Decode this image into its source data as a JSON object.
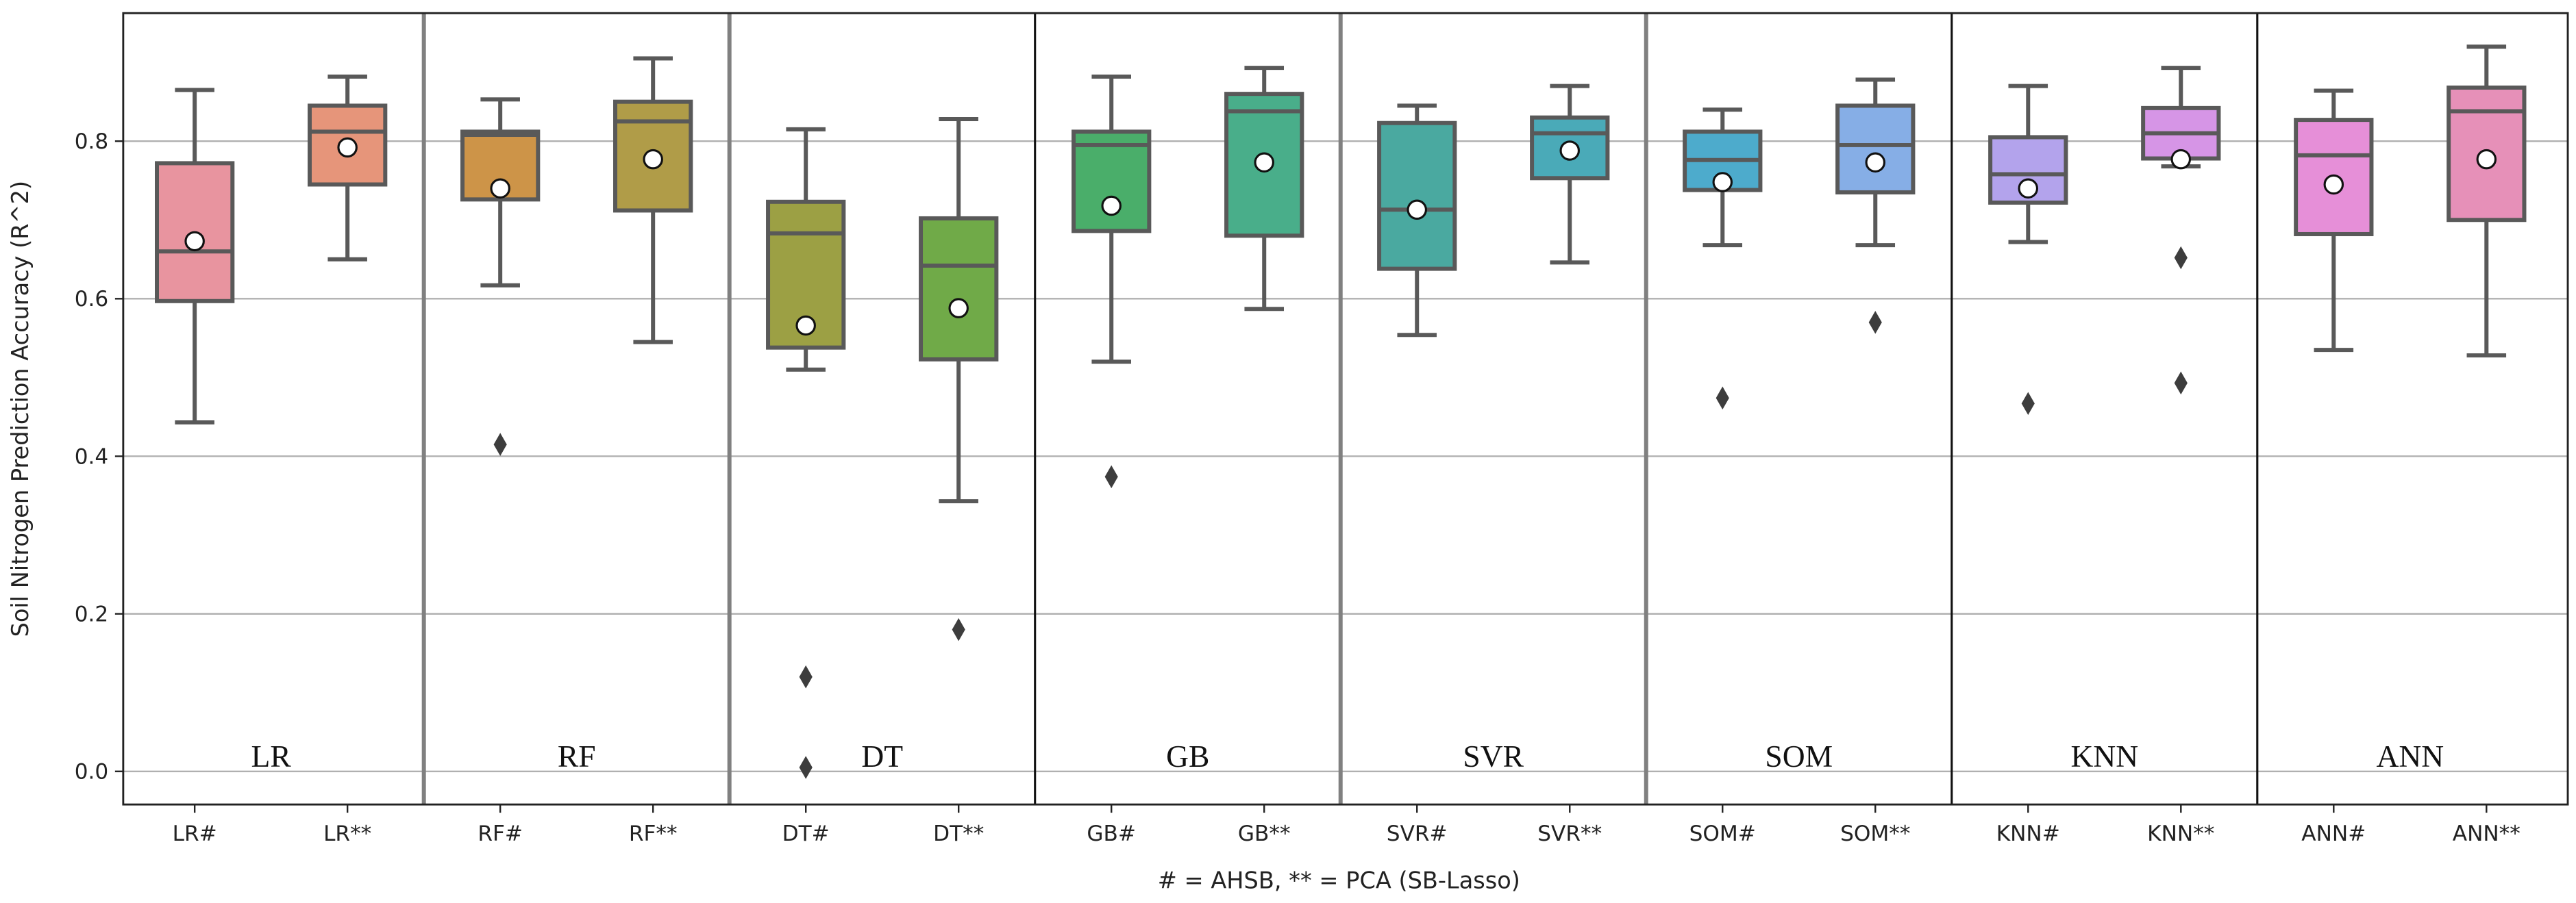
{
  "chart_data": {
    "type": "box",
    "ylabel": "Soil Nitrogen Prediction Accuracy (R^2)",
    "xlabel": "# = AHSB, ** = PCA (SB-Lasso)",
    "ylim": [
      -0.042,
      0.9625
    ],
    "yticks": [
      0.0,
      0.2,
      0.4,
      0.6,
      0.8
    ],
    "ytick_labels": [
      "0.0",
      "0.2",
      "0.4",
      "0.6",
      "0.8"
    ],
    "grid": "horizontal",
    "groups": [
      {
        "label": "LR",
        "categories": [
          "LR#",
          "LR**"
        ]
      },
      {
        "label": "RF",
        "categories": [
          "RF#",
          "RF**"
        ]
      },
      {
        "label": "DT",
        "categories": [
          "DT#",
          "DT**"
        ]
      },
      {
        "label": "GB",
        "categories": [
          "GB#",
          "GB**"
        ]
      },
      {
        "label": "SVR",
        "categories": [
          "SVR#",
          "SVR**"
        ]
      },
      {
        "label": "SOM",
        "categories": [
          "SOM#",
          "SOM**"
        ]
      },
      {
        "label": "KNN",
        "categories": [
          "KNN#",
          "KNN**"
        ]
      },
      {
        "label": "ANN",
        "categories": [
          "ANN#",
          "ANN**"
        ]
      }
    ],
    "boxes": [
      {
        "name": "LR#",
        "color": "#e8949f",
        "whisker_low": 0.443,
        "q1": 0.597,
        "median": 0.66,
        "q3": 0.772,
        "whisker_high": 0.865,
        "mean": 0.673,
        "outliers": []
      },
      {
        "name": "LR**",
        "color": "#e6957a",
        "whisker_low": 0.65,
        "q1": 0.745,
        "median": 0.812,
        "q3": 0.845,
        "whisker_high": 0.882,
        "mean": 0.792,
        "outliers": []
      },
      {
        "name": "RF#",
        "color": "#cd9448",
        "whisker_low": 0.617,
        "q1": 0.726,
        "median": 0.808,
        "q3": 0.812,
        "whisker_high": 0.853,
        "mean": 0.74,
        "outliers": [
          0.415
        ]
      },
      {
        "name": "RF**",
        "color": "#b09c48",
        "whisker_low": 0.545,
        "q1": 0.712,
        "median": 0.825,
        "q3": 0.85,
        "whisker_high": 0.905,
        "mean": 0.777,
        "outliers": []
      },
      {
        "name": "DT#",
        "color": "#9ca044",
        "whisker_low": 0.51,
        "q1": 0.538,
        "median": 0.683,
        "q3": 0.723,
        "whisker_high": 0.815,
        "mean": 0.566,
        "outliers": [
          0.12,
          0.005
        ]
      },
      {
        "name": "DT**",
        "color": "#70aa48",
        "whisker_low": 0.343,
        "q1": 0.523,
        "median": 0.642,
        "q3": 0.702,
        "whisker_high": 0.828,
        "mean": 0.588,
        "outliers": [
          0.18
        ]
      },
      {
        "name": "GB#",
        "color": "#4aae6a",
        "whisker_low": 0.52,
        "q1": 0.686,
        "median": 0.795,
        "q3": 0.812,
        "whisker_high": 0.882,
        "mean": 0.718,
        "outliers": [
          0.374
        ]
      },
      {
        "name": "GB**",
        "color": "#49ae8a",
        "whisker_low": 0.587,
        "q1": 0.68,
        "median": 0.838,
        "q3": 0.86,
        "whisker_high": 0.893,
        "mean": 0.773,
        "outliers": []
      },
      {
        "name": "SVR#",
        "color": "#4aa9a0",
        "whisker_low": 0.554,
        "q1": 0.638,
        "median": 0.713,
        "q3": 0.823,
        "whisker_high": 0.845,
        "mean": 0.713,
        "outliers": []
      },
      {
        "name": "SVR**",
        "color": "#4aaab8",
        "whisker_low": 0.646,
        "q1": 0.753,
        "median": 0.81,
        "q3": 0.83,
        "whisker_high": 0.87,
        "mean": 0.788,
        "outliers": []
      },
      {
        "name": "SOM#",
        "color": "#4dabcc",
        "whisker_low": 0.668,
        "q1": 0.738,
        "median": 0.776,
        "q3": 0.812,
        "whisker_high": 0.84,
        "mean": 0.748,
        "outliers": [
          0.474
        ]
      },
      {
        "name": "SOM**",
        "color": "#86aee6",
        "whisker_low": 0.668,
        "q1": 0.735,
        "median": 0.795,
        "q3": 0.845,
        "whisker_high": 0.878,
        "mean": 0.773,
        "outliers": [
          0.57
        ]
      },
      {
        "name": "KNN#",
        "color": "#b3a3ec",
        "whisker_low": 0.672,
        "q1": 0.722,
        "median": 0.758,
        "q3": 0.805,
        "whisker_high": 0.87,
        "mean": 0.74,
        "outliers": [
          0.467
        ]
      },
      {
        "name": "KNN**",
        "color": "#d695e6",
        "whisker_low": 0.768,
        "q1": 0.778,
        "median": 0.81,
        "q3": 0.842,
        "whisker_high": 0.893,
        "mean": 0.777,
        "outliers": [
          0.652,
          0.493
        ]
      },
      {
        "name": "ANN#",
        "color": "#e68fd8",
        "whisker_low": 0.535,
        "q1": 0.682,
        "median": 0.782,
        "q3": 0.827,
        "whisker_high": 0.864,
        "mean": 0.745,
        "outliers": []
      },
      {
        "name": "ANN**",
        "color": "#e690b8",
        "whisker_low": 0.528,
        "q1": 0.7,
        "median": 0.838,
        "q3": 0.868,
        "whisker_high": 0.92,
        "mean": 0.777,
        "outliers": []
      }
    ]
  }
}
